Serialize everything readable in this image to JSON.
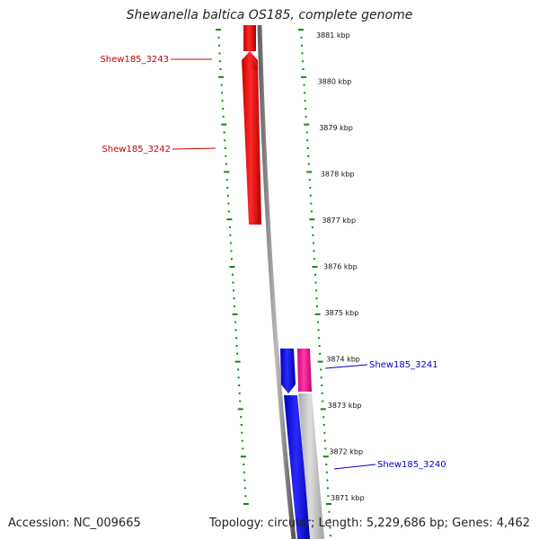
{
  "title": "Shewanella baltica OS185, complete genome",
  "footer": {
    "accession": "Accession: NC_009665",
    "stats": "Topology: circular; Length: 5,229,686 bp; Genes: 4,462"
  },
  "ruler": {
    "unit": "kbp",
    "ticks": [
      {
        "value": 3881,
        "label": "3881 kbp"
      },
      {
        "value": 3880,
        "label": "3880 kbp"
      },
      {
        "value": 3879,
        "label": "3879 kbp"
      },
      {
        "value": 3878,
        "label": "3878 kbp"
      },
      {
        "value": 3877,
        "label": "3877 kbp"
      },
      {
        "value": 3876,
        "label": "3876 kbp"
      },
      {
        "value": 3875,
        "label": "3875 kbp"
      },
      {
        "value": 3874,
        "label": "3874 kbp"
      },
      {
        "value": 3873,
        "label": "3873 kbp"
      },
      {
        "value": 3872,
        "label": "3872 kbp"
      },
      {
        "value": 3871,
        "label": "3871 kbp"
      }
    ]
  },
  "genes": [
    {
      "name": "Shew185_3243",
      "strand": "reverse",
      "color": "#cc0000"
    },
    {
      "name": "Shew185_3242",
      "strand": "reverse",
      "color": "#cc0000"
    },
    {
      "name": "Shew185_3241",
      "strand": "forward",
      "color": "#0000cc"
    },
    {
      "name": "Shew185_3240",
      "strand": "forward",
      "color": "#0000cc"
    }
  ],
  "colors": {
    "reverse_gene": "#ff0000",
    "forward_gene": "#0000ff",
    "rna_feature": "#ff1493",
    "backbone": "#888888",
    "gc_ticks": "#118811"
  }
}
